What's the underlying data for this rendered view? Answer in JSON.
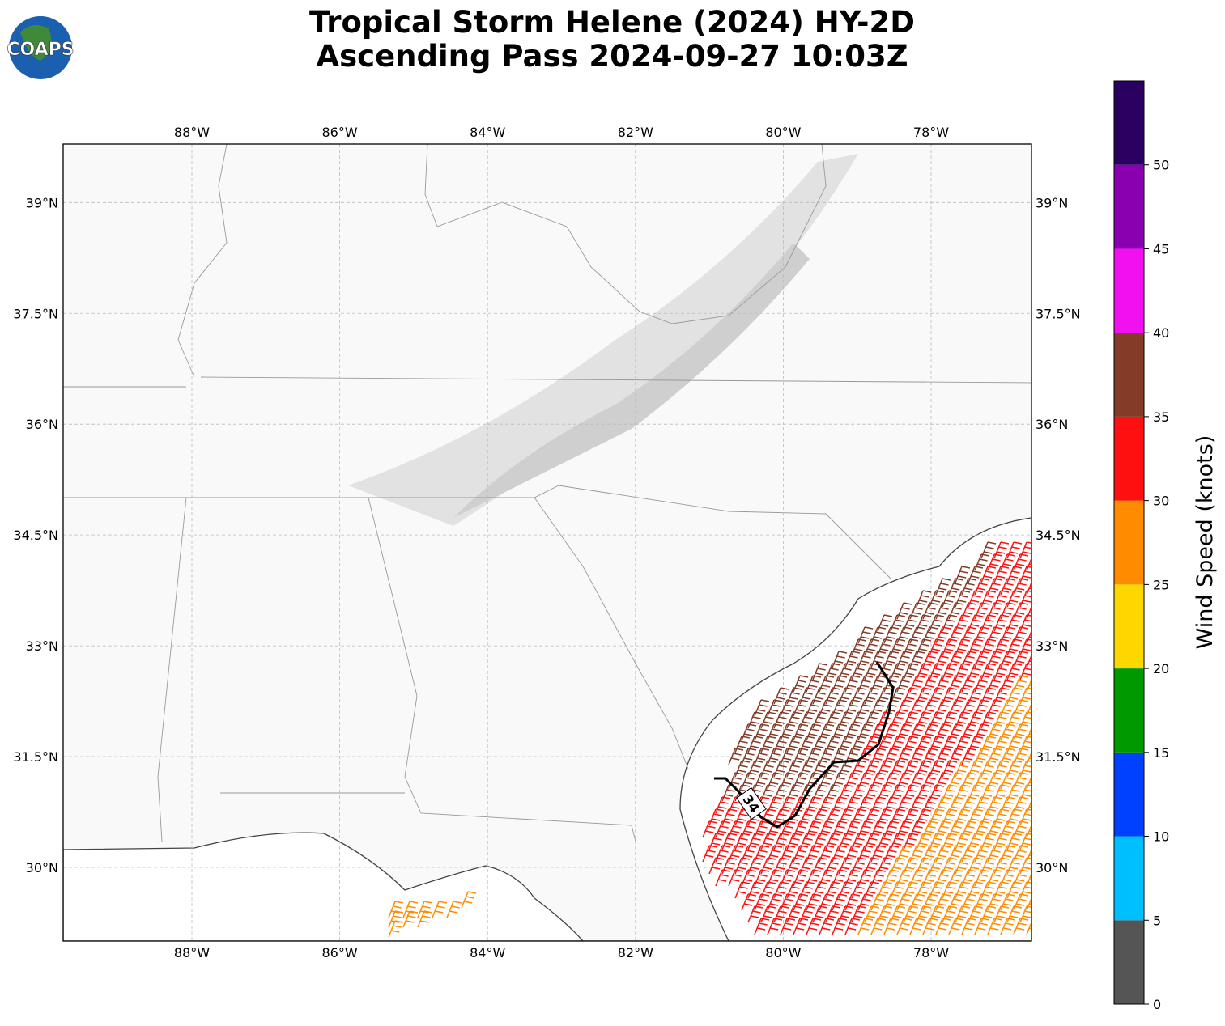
{
  "title": [
    "Tropical Storm Helene (2024) HY-2D",
    "Ascending Pass 2024-09-27 10:03Z"
  ],
  "logo": {
    "text": "COAPS"
  },
  "map": {
    "lon_ticks": [
      {
        "value": -88,
        "label": "88°W"
      },
      {
        "value": -86,
        "label": "86°W"
      },
      {
        "value": -84,
        "label": "84°W"
      },
      {
        "value": -82,
        "label": "82°W"
      },
      {
        "value": -80,
        "label": "80°W"
      },
      {
        "value": -78,
        "label": "78°W"
      }
    ],
    "lat_ticks": [
      {
        "value": 39,
        "label": "39°N"
      },
      {
        "value": 37.5,
        "label": "37.5°N"
      },
      {
        "value": 36,
        "label": "36°N"
      },
      {
        "value": 34.5,
        "label": "34.5°N"
      },
      {
        "value": 33,
        "label": "33°N"
      },
      {
        "value": 31.5,
        "label": "31.5°N"
      },
      {
        "value": 30,
        "label": "30°N"
      }
    ],
    "contour_label": "34"
  },
  "colorbar": {
    "label": "Wind Speed (knots)",
    "lim": [
      0,
      55
    ],
    "ticks": [
      0,
      5,
      10,
      15,
      20,
      25,
      30,
      35,
      40,
      45,
      50
    ],
    "colors": [
      "#555555",
      "#00bfff",
      "#0040ff",
      "#009900",
      "#ffd700",
      "#ff8c00",
      "#ff1010",
      "#843c28",
      "#f010f0",
      "#8a00b0",
      "#2a0060"
    ]
  }
}
